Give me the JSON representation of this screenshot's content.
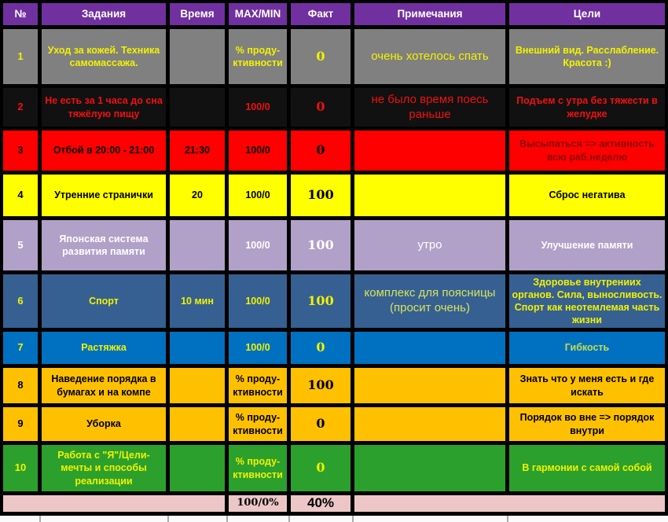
{
  "table": {
    "columns": [
      {
        "key": "num",
        "label": "№"
      },
      {
        "key": "task",
        "label": "Задания"
      },
      {
        "key": "time",
        "label": "Время"
      },
      {
        "key": "maxmin",
        "label": "MAX/MIN"
      },
      {
        "key": "fact",
        "label": "Факт"
      },
      {
        "key": "note",
        "label": "Примечания"
      },
      {
        "key": "goal",
        "label": "Цели"
      }
    ],
    "header_bg": "#7030A0",
    "header_fg": "#FFFFFF",
    "grid_color": "#000000",
    "rows": [
      {
        "num": "1",
        "task": "Уход за кожей. Техника самомассажа.",
        "time": "",
        "maxmin": "% проду-ктивности",
        "fact": "0",
        "note": "очень хотелось спать",
        "goal": "Внешний вид. Расслабление. Красота :)",
        "bg": "#808080",
        "fg": "#F2F200",
        "note_large": true
      },
      {
        "num": "2",
        "task": "Не есть за 1 часа до сна тяжёлую пищу",
        "time": "",
        "maxmin": "100/0",
        "fact": "0",
        "note": "не было время поесь раньше",
        "goal": "Подъем с утра без тяжести в желудке",
        "bg": "#111111",
        "fg": "#F01010",
        "note_large": true
      },
      {
        "num": "3",
        "task": "Отбой в 20:00 - 21:00",
        "time": "21:30",
        "maxmin": "100/0",
        "fact": "0",
        "note": "",
        "goal": "Высыпаться => активность всю раб.неделю",
        "bg": "#FF0000",
        "fg": "#000000",
        "goal_fg": "#8B0000"
      },
      {
        "num": "4",
        "task": "Утренние странички",
        "time": "20",
        "maxmin": "100/0",
        "fact": "100",
        "note": "",
        "goal": "Сброс негатива",
        "bg": "#FFFF00",
        "fg": "#000000"
      },
      {
        "num": "5",
        "task": "Японская система развития памяти",
        "time": "",
        "maxmin": "100/0",
        "fact": "100",
        "note": "утро",
        "goal": "Улучшение памяти",
        "bg": "#B1A0C7",
        "fg": "#FFFFFF",
        "note_large": true
      },
      {
        "num": "6",
        "task": "Спорт",
        "time": "10 мин",
        "maxmin": "100/0",
        "fact": "100",
        "note": "комплекс для поясницы (просит очень)",
        "goal": "Здоровье внутрениих органов. Сила, выносливость. Спорт как неотемлемая часть жизни",
        "bg": "#366092",
        "fg": "#F2F200",
        "note_fg": "#D8E359",
        "note_large": true
      },
      {
        "num": "7",
        "task": "Растяжка",
        "time": "",
        "maxmin": "100/0",
        "fact": "0",
        "note": "",
        "goal": "Гибкость",
        "bg": "#0070C0",
        "fg": "#F2F200",
        "goal_fg": "#C2DE4E"
      },
      {
        "num": "8",
        "task": "Наведение порядка в бумагах и на компе",
        "time": "",
        "maxmin": "% проду-ктивности",
        "fact": "100",
        "note": "",
        "goal": "Знать что у меня есть и где искать",
        "bg": "#FFC000",
        "fg": "#000000"
      },
      {
        "num": "9",
        "task": "Уборка",
        "time": "",
        "maxmin": "% проду-ктивности",
        "fact": "0",
        "note": "",
        "goal": "Порядок во вне => порядок внутри",
        "bg": "#FFC000",
        "fg": "#000000"
      },
      {
        "num": "10",
        "task": "Работа с \"Я\"/Цели-мечты и способы реализации",
        "time": "",
        "maxmin": "% проду-ктивности",
        "fact": "0",
        "note": "",
        "goal": "В гармонии с самой собой",
        "bg": "#2CA02C",
        "fg": "#F2F200"
      }
    ],
    "total": {
      "left": "",
      "maxmin": "100/0%",
      "fact": "40%",
      "right": "",
      "bg": "#EDC7C7",
      "fg": "#000000"
    }
  }
}
